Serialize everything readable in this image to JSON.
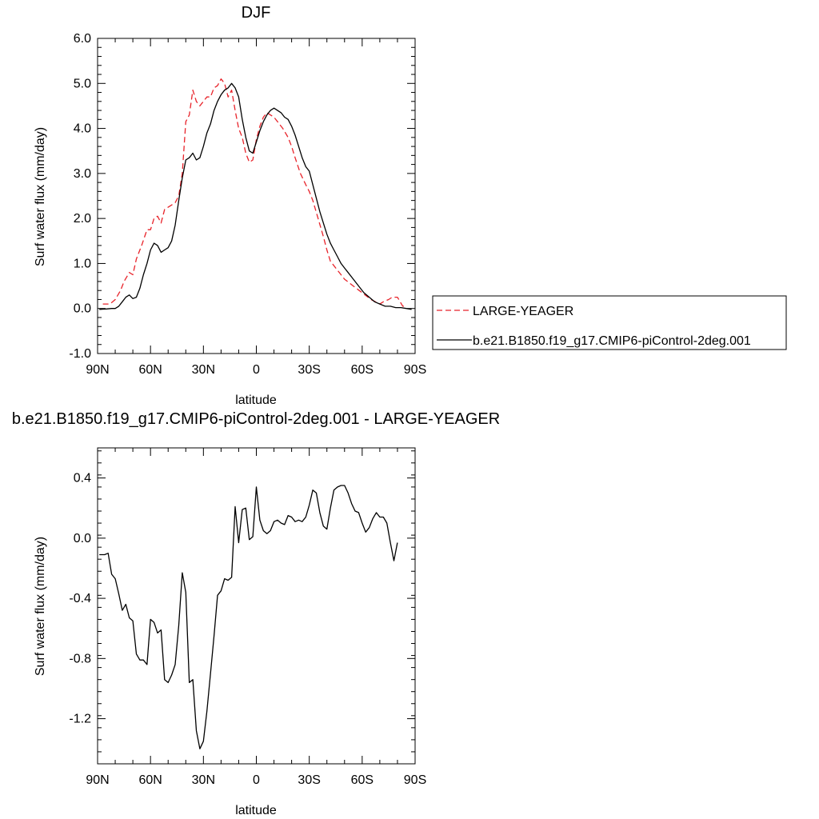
{
  "chart_data": [
    {
      "type": "line",
      "title": "DJF",
      "xlabel": "latitude",
      "ylabel": "Surf water flux (mm/day)",
      "xlim": [
        90,
        -90
      ],
      "ylim": [
        -1.0,
        6.0
      ],
      "x_ticks": [
        90,
        60,
        30,
        0,
        -30,
        -60,
        -90
      ],
      "x_tick_labels": [
        "90N",
        "60N",
        "30N",
        "0",
        "30S",
        "60S",
        "90S"
      ],
      "y_ticks": [
        -1.0,
        0.0,
        1.0,
        2.0,
        3.0,
        4.0,
        5.0,
        6.0
      ],
      "y_tick_labels": [
        "-1.0",
        "0.0",
        "1.0",
        "2.0",
        "3.0",
        "4.0",
        "5.0",
        "6.0"
      ],
      "legend_position": "right",
      "series": [
        {
          "name": "LARGE-YEAGER",
          "color": "#e8232a",
          "dash": "dashed",
          "x": [
            87,
            83,
            80,
            77,
            75,
            72,
            70,
            68,
            65,
            62,
            60,
            58,
            56,
            54,
            52,
            50,
            48,
            46,
            44,
            42,
            40,
            38,
            36,
            34,
            32,
            30,
            28,
            26,
            24,
            22,
            20,
            18,
            16,
            14,
            12,
            10,
            8,
            6,
            4,
            2,
            0,
            -2,
            -4,
            -6,
            -8,
            -10,
            -12,
            -15,
            -18,
            -20,
            -22,
            -25,
            -28,
            -30,
            -32,
            -35,
            -38,
            -40,
            -42,
            -45,
            -48,
            -50,
            -55,
            -60,
            -65,
            -70,
            -72,
            -75,
            -77,
            -80,
            -83,
            -85
          ],
          "y": [
            0.1,
            0.1,
            0.2,
            0.4,
            0.6,
            0.8,
            0.75,
            1.1,
            1.4,
            1.75,
            1.75,
            2.0,
            2.05,
            1.9,
            2.2,
            2.25,
            2.3,
            2.35,
            2.5,
            3.0,
            4.15,
            4.3,
            4.85,
            4.6,
            4.5,
            4.6,
            4.7,
            4.7,
            4.9,
            4.95,
            5.1,
            5.0,
            4.7,
            4.85,
            4.4,
            4.0,
            3.8,
            3.45,
            3.25,
            3.3,
            3.75,
            4.05,
            4.25,
            4.35,
            4.3,
            4.25,
            4.15,
            4.0,
            3.8,
            3.6,
            3.35,
            3.0,
            2.75,
            2.6,
            2.4,
            2.0,
            1.6,
            1.3,
            1.05,
            0.9,
            0.75,
            0.65,
            0.5,
            0.35,
            0.2,
            0.1,
            0.15,
            0.2,
            0.25,
            0.25,
            0.05,
            0.05
          ]
        },
        {
          "name": "b.e21.B1850.f19_g17.CMIP6-piControl-2deg.001",
          "color": "#000000",
          "dash": "solid",
          "x": [
            89,
            85,
            82,
            80,
            78,
            76,
            74,
            72,
            70,
            68,
            66,
            64,
            62,
            60,
            58,
            56,
            54,
            52,
            50,
            48,
            46,
            44,
            42,
            40,
            38,
            36,
            34,
            32,
            30,
            28,
            26,
            24,
            22,
            20,
            18,
            16,
            14,
            12,
            10,
            8,
            6,
            4,
            2,
            0,
            -2,
            -4,
            -6,
            -8,
            -10,
            -12,
            -14,
            -16,
            -18,
            -20,
            -22,
            -24,
            -26,
            -28,
            -30,
            -32,
            -34,
            -36,
            -38,
            -40,
            -42,
            -44,
            -46,
            -48,
            -50,
            -52,
            -55,
            -58,
            -61,
            -64,
            -67,
            -70,
            -73,
            -76,
            -79,
            -82,
            -85,
            -88
          ],
          "y": [
            -0.02,
            -0.01,
            0.0,
            0.0,
            0.05,
            0.15,
            0.25,
            0.3,
            0.22,
            0.25,
            0.45,
            0.75,
            1.0,
            1.3,
            1.45,
            1.4,
            1.25,
            1.3,
            1.35,
            1.5,
            1.85,
            2.4,
            2.9,
            3.3,
            3.35,
            3.45,
            3.3,
            3.35,
            3.6,
            3.9,
            4.1,
            4.4,
            4.6,
            4.75,
            4.85,
            4.9,
            5.0,
            4.9,
            4.7,
            4.2,
            3.8,
            3.5,
            3.45,
            3.7,
            3.95,
            4.15,
            4.3,
            4.4,
            4.45,
            4.4,
            4.35,
            4.25,
            4.2,
            4.05,
            3.85,
            3.6,
            3.35,
            3.15,
            3.05,
            2.75,
            2.45,
            2.15,
            1.9,
            1.65,
            1.45,
            1.3,
            1.15,
            1.0,
            0.9,
            0.8,
            0.65,
            0.5,
            0.35,
            0.25,
            0.15,
            0.1,
            0.05,
            0.05,
            0.02,
            0.02,
            0.0,
            -0.02
          ]
        }
      ]
    },
    {
      "type": "line",
      "title": "b.e21.B1850.f19_g17.CMIP6-piControl-2deg.001 - LARGE-YEAGER",
      "xlabel": "latitude",
      "ylabel": "Surf water flux (mm/day)",
      "xlim": [
        90,
        -90
      ],
      "ylim": [
        -1.5,
        0.6
      ],
      "x_ticks": [
        90,
        60,
        30,
        0,
        -30,
        -60,
        -90
      ],
      "x_tick_labels": [
        "90N",
        "60N",
        "30N",
        "0",
        "30S",
        "60S",
        "90S"
      ],
      "y_ticks": [
        -1.2,
        -0.8,
        -0.4,
        0.0,
        0.4
      ],
      "y_tick_labels": [
        "-1.2",
        "-0.8",
        "-0.4",
        "0.0",
        "0.4"
      ],
      "series": [
        {
          "color": "#000000",
          "dash": "solid",
          "x": [
            89,
            86,
            84,
            82,
            80,
            78,
            76,
            74,
            72,
            70,
            68,
            66,
            64,
            62,
            60,
            58,
            56,
            54,
            52,
            50,
            48,
            46,
            44,
            42,
            40,
            38,
            36,
            34,
            32,
            30,
            28,
            26,
            24,
            22,
            20,
            18,
            16,
            14,
            12,
            10,
            8,
            6,
            4,
            2,
            0,
            -2,
            -4,
            -6,
            -8,
            -10,
            -12,
            -14,
            -16,
            -18,
            -20,
            -22,
            -24,
            -26,
            -28,
            -30,
            -32,
            -34,
            -36,
            -38,
            -40,
            -42,
            -44,
            -46,
            -48,
            -50,
            -52,
            -54,
            -56,
            -58,
            -60,
            -62,
            -64,
            -66,
            -68,
            -70,
            -72,
            -74,
            -76,
            -78,
            -80
          ],
          "y": [
            -0.11,
            -0.11,
            -0.1,
            -0.24,
            -0.27,
            -0.37,
            -0.48,
            -0.44,
            -0.53,
            -0.55,
            -0.77,
            -0.81,
            -0.81,
            -0.84,
            -0.54,
            -0.56,
            -0.63,
            -0.61,
            -0.94,
            -0.96,
            -0.91,
            -0.84,
            -0.58,
            -0.23,
            -0.36,
            -0.96,
            -0.94,
            -1.28,
            -1.4,
            -1.35,
            -1.15,
            -0.9,
            -0.65,
            -0.38,
            -0.35,
            -0.27,
            -0.28,
            -0.26,
            0.21,
            -0.03,
            0.19,
            0.2,
            -0.01,
            0.01,
            0.34,
            0.12,
            0.05,
            0.03,
            0.05,
            0.11,
            0.12,
            0.1,
            0.09,
            0.15,
            0.14,
            0.11,
            0.12,
            0.11,
            0.14,
            0.22,
            0.32,
            0.3,
            0.17,
            0.08,
            0.06,
            0.2,
            0.32,
            0.34,
            0.35,
            0.35,
            0.3,
            0.23,
            0.18,
            0.17,
            0.1,
            0.04,
            0.07,
            0.13,
            0.17,
            0.14,
            0.14,
            0.1,
            -0.03,
            -0.15,
            -0.03
          ]
        }
      ]
    }
  ]
}
